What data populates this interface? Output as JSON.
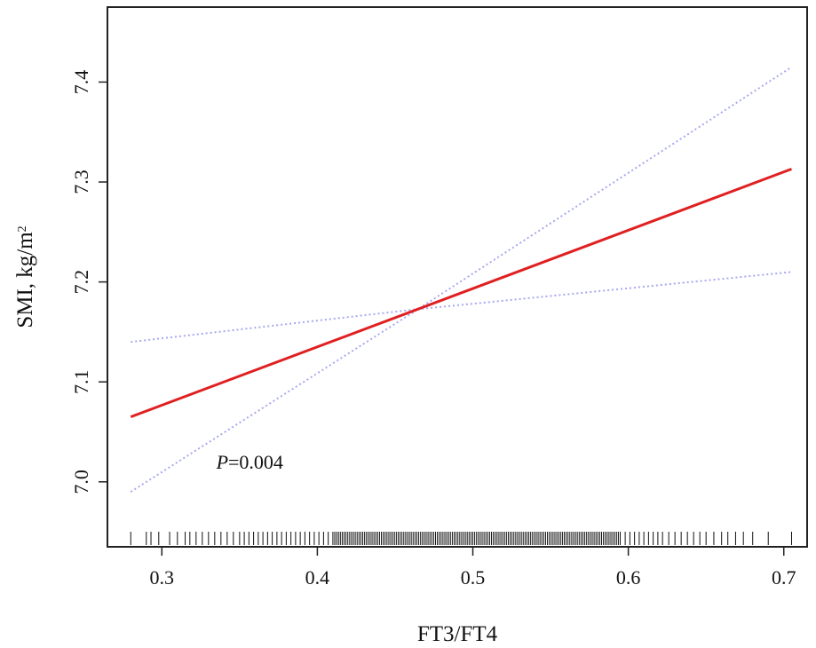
{
  "chart_data": {
    "type": "line",
    "xlabel": "FT3/FT4",
    "ylabel": "SMI, kg/m",
    "ylabel_superscript": "2",
    "xlim": [
      0.265,
      0.715
    ],
    "ylim": [
      6.935,
      7.475
    ],
    "x_ticks": [
      "0.3",
      "0.4",
      "0.5",
      "0.6",
      "0.7"
    ],
    "y_ticks": [
      "7.0",
      "7.1",
      "7.2",
      "7.3",
      "7.4"
    ],
    "grid": false,
    "series": [
      {
        "role": "estimate",
        "color": "#e02020",
        "style": "solid",
        "x": [
          0.28,
          0.705
        ],
        "y": [
          7.065,
          7.313
        ]
      },
      {
        "role": "upper-ci",
        "color": "#a8a8f0",
        "style": "dotted",
        "x": [
          0.28,
          0.46,
          0.705
        ],
        "y": [
          7.14,
          7.172,
          7.21
        ]
      },
      {
        "role": "lower-ci",
        "color": "#a8a8f0",
        "style": "dotted",
        "x": [
          0.28,
          0.46,
          0.705
        ],
        "y": [
          6.99,
          7.168,
          7.415
        ]
      }
    ],
    "rug": {
      "sparse": [
        0.28,
        0.29,
        0.293,
        0.298,
        0.305,
        0.31,
        0.315,
        0.318,
        0.322,
        0.326,
        0.33,
        0.334,
        0.338,
        0.342,
        0.346,
        0.35,
        0.353,
        0.356,
        0.359,
        0.362,
        0.365,
        0.368,
        0.371,
        0.374,
        0.377,
        0.38,
        0.383,
        0.386,
        0.389,
        0.392,
        0.395,
        0.398,
        0.401,
        0.404,
        0.407,
        0.598,
        0.601,
        0.604,
        0.607,
        0.61,
        0.613,
        0.616,
        0.619,
        0.622,
        0.626,
        0.63,
        0.634,
        0.638,
        0.642,
        0.646,
        0.65,
        0.655,
        0.66,
        0.664,
        0.669,
        0.674,
        0.68,
        0.69,
        0.705
      ],
      "dense_range": [
        0.41,
        0.595
      ],
      "dense_step": 0.0012,
      "color": "#111111"
    },
    "annotation": {
      "p_label": "P",
      "p_value": "=0.004",
      "x": 0.335,
      "y": 7.013
    }
  }
}
